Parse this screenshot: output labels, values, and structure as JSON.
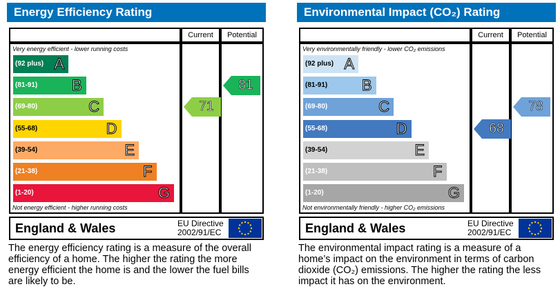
{
  "energy": {
    "title": "Energy Efficiency Rating",
    "header_color": "#0072bb",
    "col_current": "Current",
    "col_potential": "Potential",
    "top_text": "Very energy efficient - lower running costs",
    "bottom_text": "Not energy efficient - higher running costs",
    "bands": [
      {
        "range": "(92 plus)",
        "letter": "A",
        "color": "#008054"
      },
      {
        "range": "(81-91)",
        "letter": "B",
        "color": "#19b459"
      },
      {
        "range": "(69-80)",
        "letter": "C",
        "color": "#8dce46"
      },
      {
        "range": "(55-68)",
        "letter": "D",
        "color": "#ffd500"
      },
      {
        "range": "(39-54)",
        "letter": "E",
        "color": "#fcaa65"
      },
      {
        "range": "(21-38)",
        "letter": "F",
        "color": "#ef8023"
      },
      {
        "range": "(1-20)",
        "letter": "G",
        "color": "#e9153b"
      }
    ],
    "current": {
      "value": "71",
      "band_index": 2,
      "color": "#8dce46"
    },
    "potential": {
      "value": "81",
      "band_index": 1,
      "color": "#19b459"
    },
    "footer_region": "England & Wales",
    "footer_directive_1": "EU Directive",
    "footer_directive_2": "2002/91/EC",
    "description": "The energy efficiency rating is a measure of the overall efficiency of a home. The higher the rating the more energy efficient the home is and the lower the fuel bills are likely to be."
  },
  "environment": {
    "title": "Environmental Impact (CO₂) Rating",
    "header_color": "#0072bb",
    "col_current": "Current",
    "col_potential": "Potential",
    "top_text": "Very environmentally friendly - lower CO₂ emissions",
    "bottom_text": "Not environmentally friendly - higher CO₂ emissions",
    "bands": [
      {
        "range": "(92 plus)",
        "letter": "A",
        "color": "#cde3f5"
      },
      {
        "range": "(81-91)",
        "letter": "B",
        "color": "#9cc8ed"
      },
      {
        "range": "(69-80)",
        "letter": "C",
        "color": "#6ea2d9"
      },
      {
        "range": "(55-68)",
        "letter": "D",
        "color": "#4379bf"
      },
      {
        "range": "(39-54)",
        "letter": "E",
        "color": "#d2d2d2"
      },
      {
        "range": "(21-38)",
        "letter": "F",
        "color": "#bfbfbf"
      },
      {
        "range": "(1-20)",
        "letter": "G",
        "color": "#a6a6a6"
      }
    ],
    "current": {
      "value": "68",
      "band_index": 3,
      "color": "#4379bf"
    },
    "potential": {
      "value": "78",
      "band_index": 2,
      "color": "#6ea2d9"
    },
    "footer_region": "England & Wales",
    "footer_directive_1": "EU Directive",
    "footer_directive_2": "2002/91/EC",
    "description": "The environmental impact rating is a measure of a home’s impact on the environment in terms of carbon dioxide (CO₂) emissions. The higher the rating the less impact it has on the environment."
  }
}
